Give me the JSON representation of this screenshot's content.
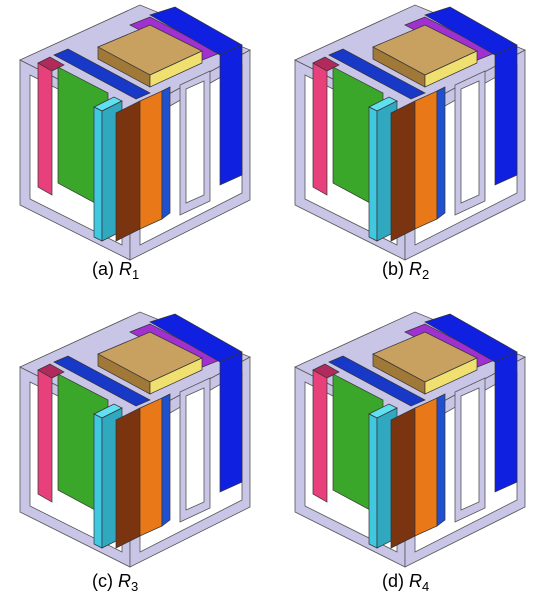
{
  "panels": [
    {
      "label": "(a)",
      "symbol": "R",
      "subscript": "1"
    },
    {
      "label": "(b)",
      "symbol": "R",
      "subscript": "2"
    },
    {
      "label": "(c)",
      "symbol": "R",
      "subscript": "3"
    },
    {
      "label": "(d)",
      "symbol": "R",
      "subscript": "4"
    }
  ]
}
